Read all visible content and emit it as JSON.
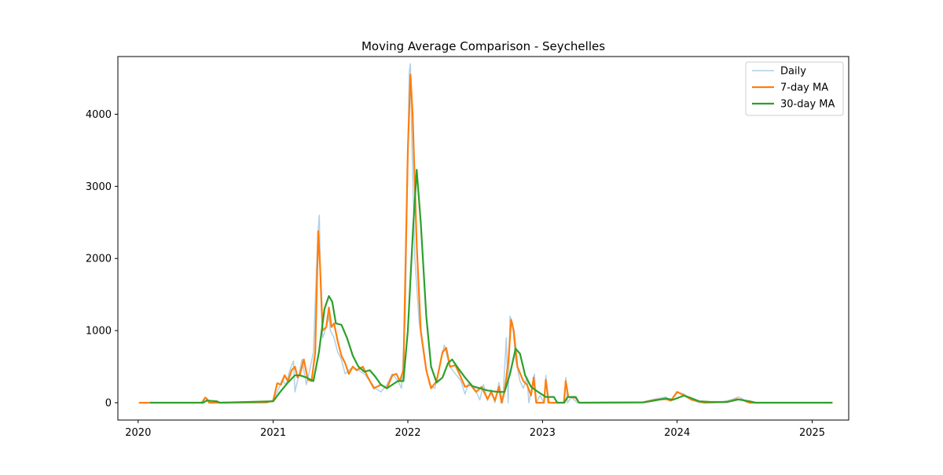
{
  "chart_data": {
    "type": "line",
    "title": "Moving Average Comparison - Seychelles",
    "xlabel": "",
    "ylabel": "",
    "x_range": [
      "2019-11-07",
      "2025-04-10"
    ],
    "ylim": [
      -240,
      4800
    ],
    "x_ticks": [
      {
        "date": "2020-01-01",
        "label": "2020"
      },
      {
        "date": "2021-01-01",
        "label": "2021"
      },
      {
        "date": "2022-01-01",
        "label": "2022"
      },
      {
        "date": "2023-01-01",
        "label": "2023"
      },
      {
        "date": "2024-01-01",
        "label": "2024"
      },
      {
        "date": "2025-01-01",
        "label": "2025"
      }
    ],
    "y_ticks": [
      0,
      1000,
      2000,
      3000,
      4000
    ],
    "grid": false,
    "legend_position": "top-right",
    "series": [
      {
        "name": "Daily",
        "color": "#1f77b4",
        "points": [
          [
            "2020-01-03",
            0
          ],
          [
            "2020-06-20",
            0
          ],
          [
            "2020-07-01",
            80
          ],
          [
            "2020-07-10",
            0
          ],
          [
            "2020-12-15",
            10
          ],
          [
            "2021-01-01",
            30
          ],
          [
            "2021-01-15",
            180
          ],
          [
            "2021-01-25",
            320
          ],
          [
            "2021-02-05",
            250
          ],
          [
            "2021-02-15",
            450
          ],
          [
            "2021-02-25",
            580
          ],
          [
            "2021-03-01",
            150
          ],
          [
            "2021-03-10",
            350
          ],
          [
            "2021-03-20",
            600
          ],
          [
            "2021-04-01",
            250
          ],
          [
            "2021-04-10",
            450
          ],
          [
            "2021-04-20",
            700
          ],
          [
            "2021-04-28",
            1800
          ],
          [
            "2021-05-03",
            2400
          ],
          [
            "2021-05-06",
            2600
          ],
          [
            "2021-05-10",
            1500
          ],
          [
            "2021-05-15",
            900
          ],
          [
            "2021-05-25",
            1050
          ],
          [
            "2021-06-01",
            1200
          ],
          [
            "2021-06-05",
            1000
          ],
          [
            "2021-06-15",
            900
          ],
          [
            "2021-06-25",
            700
          ],
          [
            "2021-07-05",
            600
          ],
          [
            "2021-07-15",
            400
          ],
          [
            "2021-07-25",
            450
          ],
          [
            "2021-08-05",
            500
          ],
          [
            "2021-08-20",
            450
          ],
          [
            "2021-09-05",
            400
          ],
          [
            "2021-09-20",
            300
          ],
          [
            "2021-10-05",
            200
          ],
          [
            "2021-10-20",
            150
          ],
          [
            "2021-11-05",
            250
          ],
          [
            "2021-11-20",
            400
          ],
          [
            "2021-12-05",
            300
          ],
          [
            "2021-12-15",
            200
          ],
          [
            "2021-12-25",
            1200
          ],
          [
            "2022-01-01",
            3500
          ],
          [
            "2022-01-05",
            4600
          ],
          [
            "2022-01-08",
            4700
          ],
          [
            "2022-01-12",
            3600
          ],
          [
            "2022-01-20",
            2000
          ],
          [
            "2022-02-01",
            1100
          ],
          [
            "2022-02-15",
            600
          ],
          [
            "2022-03-01",
            250
          ],
          [
            "2022-03-15",
            200
          ],
          [
            "2022-04-01",
            600
          ],
          [
            "2022-04-10",
            800
          ],
          [
            "2022-04-25",
            500
          ],
          [
            "2022-05-10",
            400
          ],
          [
            "2022-05-25",
            300
          ],
          [
            "2022-06-05",
            120
          ],
          [
            "2022-06-15",
            280
          ],
          [
            "2022-07-01",
            200
          ],
          [
            "2022-07-15",
            40
          ],
          [
            "2022-07-25",
            250
          ],
          [
            "2022-08-05",
            30
          ],
          [
            "2022-08-15",
            180
          ],
          [
            "2022-08-25",
            0
          ],
          [
            "2022-09-05",
            280
          ],
          [
            "2022-09-15",
            0
          ],
          [
            "2022-09-25",
            900
          ],
          [
            "2022-09-30",
            0
          ],
          [
            "2022-10-05",
            1200
          ],
          [
            "2022-10-12",
            1100
          ],
          [
            "2022-10-20",
            600
          ],
          [
            "2022-11-01",
            300
          ],
          [
            "2022-11-10",
            200
          ],
          [
            "2022-11-20",
            350
          ],
          [
            "2022-11-25",
            0
          ],
          [
            "2022-12-10",
            400
          ],
          [
            "2022-12-15",
            0
          ],
          [
            "2022-12-25",
            100
          ],
          [
            "2023-01-05",
            0
          ],
          [
            "2023-01-10",
            380
          ],
          [
            "2023-01-15",
            0
          ],
          [
            "2023-03-01",
            0
          ],
          [
            "2023-03-05",
            350
          ],
          [
            "2023-03-10",
            0
          ],
          [
            "2023-03-20",
            80
          ],
          [
            "2023-04-05",
            0
          ],
          [
            "2023-10-01",
            10
          ],
          [
            "2023-11-01",
            50
          ],
          [
            "2023-12-01",
            80
          ],
          [
            "2023-12-15",
            20
          ],
          [
            "2024-01-01",
            150
          ],
          [
            "2024-01-20",
            120
          ],
          [
            "2024-02-05",
            50
          ],
          [
            "2024-03-01",
            0
          ],
          [
            "2024-05-01",
            10
          ],
          [
            "2024-06-01",
            50
          ],
          [
            "2024-06-15",
            80
          ],
          [
            "2024-07-05",
            30
          ],
          [
            "2024-07-20",
            0
          ],
          [
            "2025-02-25",
            0
          ]
        ]
      },
      {
        "name": "7-day MA",
        "color": "#ff7f0e",
        "points": [
          [
            "2020-01-03",
            0
          ],
          [
            "2020-06-22",
            0
          ],
          [
            "2020-07-01",
            70
          ],
          [
            "2020-07-06",
            50
          ],
          [
            "2020-07-12",
            0
          ],
          [
            "2020-12-15",
            5
          ],
          [
            "2021-01-01",
            30
          ],
          [
            "2021-01-12",
            270
          ],
          [
            "2021-01-22",
            250
          ],
          [
            "2021-02-01",
            380
          ],
          [
            "2021-02-10",
            300
          ],
          [
            "2021-02-20",
            450
          ],
          [
            "2021-03-01",
            500
          ],
          [
            "2021-03-08",
            350
          ],
          [
            "2021-03-15",
            400
          ],
          [
            "2021-03-25",
            600
          ],
          [
            "2021-04-05",
            320
          ],
          [
            "2021-04-15",
            300
          ],
          [
            "2021-04-25",
            700
          ],
          [
            "2021-05-03",
            2380
          ],
          [
            "2021-05-08",
            1900
          ],
          [
            "2021-05-15",
            1000
          ],
          [
            "2021-05-25",
            1050
          ],
          [
            "2021-06-01",
            1320
          ],
          [
            "2021-06-08",
            1050
          ],
          [
            "2021-06-15",
            1100
          ],
          [
            "2021-06-25",
            850
          ],
          [
            "2021-07-05",
            650
          ],
          [
            "2021-07-15",
            550
          ],
          [
            "2021-07-25",
            400
          ],
          [
            "2021-08-05",
            500
          ],
          [
            "2021-08-15",
            450
          ],
          [
            "2021-09-01",
            500
          ],
          [
            "2021-09-15",
            350
          ],
          [
            "2021-10-01",
            200
          ],
          [
            "2021-10-20",
            250
          ],
          [
            "2021-11-05",
            200
          ],
          [
            "2021-11-20",
            380
          ],
          [
            "2021-12-01",
            400
          ],
          [
            "2021-12-10",
            300
          ],
          [
            "2021-12-20",
            450
          ],
          [
            "2022-01-01",
            3500
          ],
          [
            "2022-01-08",
            4550
          ],
          [
            "2022-01-14",
            4000
          ],
          [
            "2022-01-25",
            2200
          ],
          [
            "2022-02-05",
            1000
          ],
          [
            "2022-02-20",
            450
          ],
          [
            "2022-03-05",
            200
          ],
          [
            "2022-03-20",
            300
          ],
          [
            "2022-04-05",
            700
          ],
          [
            "2022-04-15",
            760
          ],
          [
            "2022-04-25",
            500
          ],
          [
            "2022-05-10",
            520
          ],
          [
            "2022-05-25",
            350
          ],
          [
            "2022-06-05",
            220
          ],
          [
            "2022-06-20",
            250
          ],
          [
            "2022-07-05",
            150
          ],
          [
            "2022-07-20",
            220
          ],
          [
            "2022-08-05",
            50
          ],
          [
            "2022-08-15",
            150
          ],
          [
            "2022-08-25",
            30
          ],
          [
            "2022-09-05",
            220
          ],
          [
            "2022-09-12",
            0
          ],
          [
            "2022-09-20",
            150
          ],
          [
            "2022-10-01",
            600
          ],
          [
            "2022-10-08",
            1150
          ],
          [
            "2022-10-15",
            1000
          ],
          [
            "2022-10-25",
            500
          ],
          [
            "2022-11-10",
            300
          ],
          [
            "2022-11-20",
            250
          ],
          [
            "2022-12-01",
            100
          ],
          [
            "2022-12-08",
            350
          ],
          [
            "2022-12-15",
            0
          ],
          [
            "2022-12-25",
            0
          ],
          [
            "2023-01-05",
            0
          ],
          [
            "2023-01-10",
            320
          ],
          [
            "2023-01-18",
            0
          ],
          [
            "2023-02-28",
            0
          ],
          [
            "2023-03-05",
            300
          ],
          [
            "2023-03-12",
            80
          ],
          [
            "2023-04-01",
            70
          ],
          [
            "2023-04-10",
            0
          ],
          [
            "2023-10-01",
            5
          ],
          [
            "2023-11-01",
            40
          ],
          [
            "2023-12-01",
            50
          ],
          [
            "2023-12-15",
            30
          ],
          [
            "2024-01-01",
            150
          ],
          [
            "2024-01-20",
            100
          ],
          [
            "2024-02-10",
            40
          ],
          [
            "2024-03-15",
            0
          ],
          [
            "2024-05-15",
            10
          ],
          [
            "2024-06-10",
            50
          ],
          [
            "2024-06-25",
            40
          ],
          [
            "2024-07-15",
            0
          ],
          [
            "2025-02-25",
            0
          ]
        ]
      },
      {
        "name": "30-day MA",
        "color": "#2ca02c",
        "points": [
          [
            "2020-02-02",
            0
          ],
          [
            "2020-06-25",
            0
          ],
          [
            "2020-07-05",
            30
          ],
          [
            "2020-08-01",
            20
          ],
          [
            "2020-08-10",
            0
          ],
          [
            "2021-01-01",
            20
          ],
          [
            "2021-01-20",
            150
          ],
          [
            "2021-02-10",
            280
          ],
          [
            "2021-03-01",
            380
          ],
          [
            "2021-03-15",
            380
          ],
          [
            "2021-04-01",
            350
          ],
          [
            "2021-04-20",
            300
          ],
          [
            "2021-05-05",
            700
          ],
          [
            "2021-05-20",
            1300
          ],
          [
            "2021-06-01",
            1480
          ],
          [
            "2021-06-10",
            1400
          ],
          [
            "2021-06-20",
            1100
          ],
          [
            "2021-07-05",
            1080
          ],
          [
            "2021-07-20",
            900
          ],
          [
            "2021-08-05",
            650
          ],
          [
            "2021-08-20",
            500
          ],
          [
            "2021-09-05",
            430
          ],
          [
            "2021-09-20",
            450
          ],
          [
            "2021-10-05",
            360
          ],
          [
            "2021-10-20",
            250
          ],
          [
            "2021-11-05",
            200
          ],
          [
            "2021-11-20",
            250
          ],
          [
            "2021-12-05",
            300
          ],
          [
            "2021-12-20",
            300
          ],
          [
            "2022-01-01",
            1000
          ],
          [
            "2022-01-15",
            2400
          ],
          [
            "2022-01-25",
            3230
          ],
          [
            "2022-02-05",
            2500
          ],
          [
            "2022-02-20",
            1200
          ],
          [
            "2022-03-05",
            500
          ],
          [
            "2022-03-20",
            280
          ],
          [
            "2022-04-05",
            350
          ],
          [
            "2022-04-20",
            550
          ],
          [
            "2022-05-01",
            600
          ],
          [
            "2022-05-20",
            460
          ],
          [
            "2022-06-05",
            350
          ],
          [
            "2022-06-25",
            230
          ],
          [
            "2022-07-15",
            200
          ],
          [
            "2022-08-05",
            170
          ],
          [
            "2022-09-01",
            150
          ],
          [
            "2022-09-20",
            150
          ],
          [
            "2022-10-05",
            400
          ],
          [
            "2022-10-20",
            750
          ],
          [
            "2022-11-01",
            680
          ],
          [
            "2022-11-15",
            380
          ],
          [
            "2022-12-01",
            220
          ],
          [
            "2022-12-20",
            150
          ],
          [
            "2023-01-10",
            80
          ],
          [
            "2023-02-01",
            80
          ],
          [
            "2023-02-10",
            0
          ],
          [
            "2023-03-01",
            0
          ],
          [
            "2023-03-10",
            80
          ],
          [
            "2023-04-01",
            80
          ],
          [
            "2023-04-10",
            0
          ],
          [
            "2023-10-01",
            5
          ],
          [
            "2023-11-01",
            30
          ],
          [
            "2023-12-01",
            60
          ],
          [
            "2023-12-20",
            40
          ],
          [
            "2024-01-20",
            100
          ],
          [
            "2024-02-10",
            60
          ],
          [
            "2024-03-01",
            20
          ],
          [
            "2024-04-01",
            10
          ],
          [
            "2024-05-15",
            10
          ],
          [
            "2024-06-15",
            45
          ],
          [
            "2024-07-15",
            20
          ],
          [
            "2024-08-01",
            0
          ],
          [
            "2025-02-25",
            0
          ]
        ]
      }
    ]
  }
}
